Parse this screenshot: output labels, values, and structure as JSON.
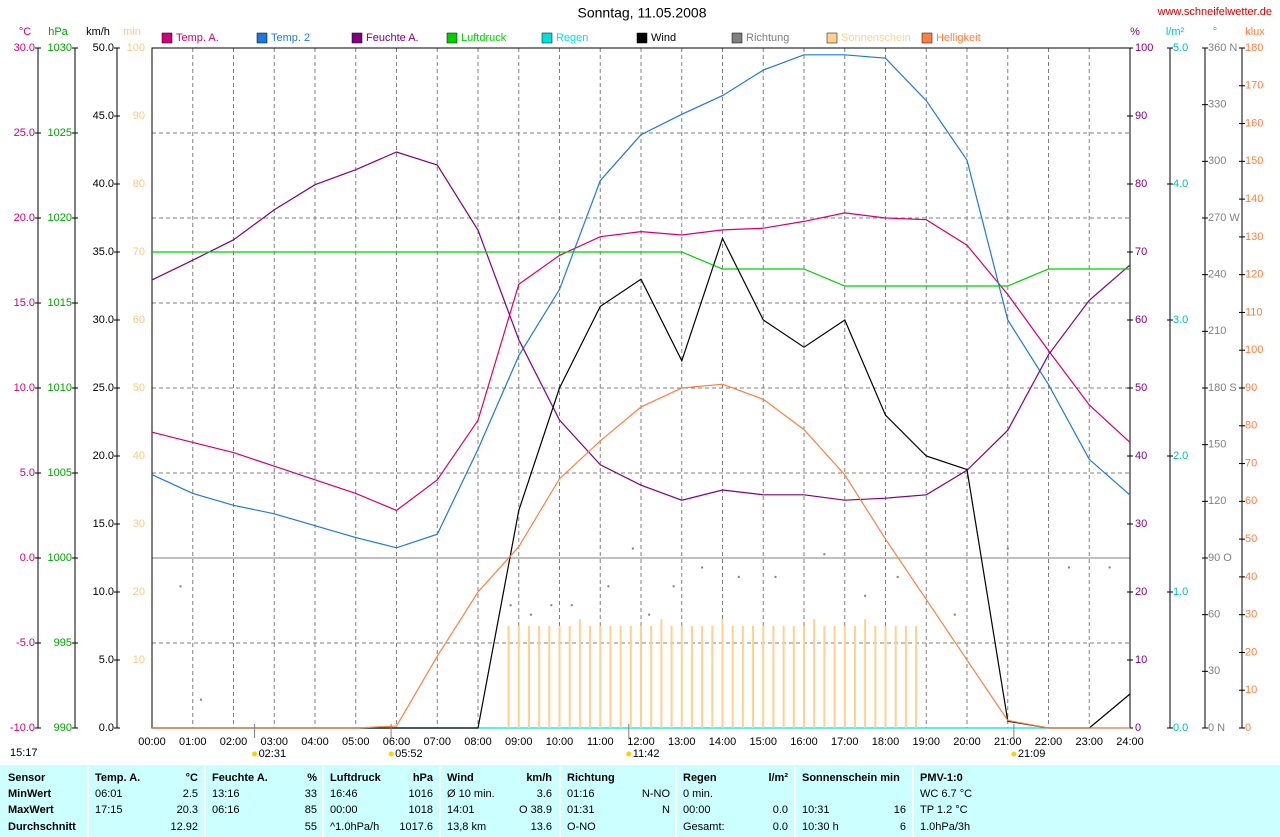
{
  "chart_data": {
    "type": "line",
    "title": "Sonntag, 11.05.2008",
    "source": "www.schneifelwetter.de",
    "time": "15:17",
    "xlim": [
      0,
      24
    ],
    "xticks": [
      {
        "value": 0,
        "label": "00:00"
      },
      {
        "value": 1,
        "label": "01:00"
      },
      {
        "value": 2,
        "label": "02:00"
      },
      {
        "value": 3,
        "label": "03:00"
      },
      {
        "value": 4,
        "label": "04:00"
      },
      {
        "value": 5,
        "label": "05:00"
      },
      {
        "value": 6,
        "label": "06:00"
      },
      {
        "value": 7,
        "label": "07:00"
      },
      {
        "value": 8,
        "label": "08:00"
      },
      {
        "value": 9,
        "label": "09:00"
      },
      {
        "value": 10,
        "label": "10:00"
      },
      {
        "value": 11,
        "label": "11:00"
      },
      {
        "value": 12,
        "label": "12:00"
      },
      {
        "value": 13,
        "label": "13:00"
      },
      {
        "value": 14,
        "label": "14:00"
      },
      {
        "value": 15,
        "label": "15:00"
      },
      {
        "value": 16,
        "label": "16:00"
      },
      {
        "value": 17,
        "label": "17:00"
      },
      {
        "value": 18,
        "label": "18:00"
      },
      {
        "value": 19,
        "label": "19:00"
      },
      {
        "value": 20,
        "label": "20:00"
      },
      {
        "value": 21,
        "label": "21:00"
      },
      {
        "value": 22,
        "label": "22:00"
      },
      {
        "value": 23,
        "label": "23:00"
      },
      {
        "value": 24,
        "label": "24:00"
      }
    ],
    "markers": [
      {
        "value": 2.517,
        "label": "02:31"
      },
      {
        "value": 5.867,
        "label": "05:52"
      },
      {
        "value": 11.7,
        "label": "11:42"
      },
      {
        "value": 21.15,
        "label": "21:09"
      }
    ],
    "axes": [
      {
        "unit": "°C",
        "color": "#d0007a",
        "ylim": [
          -10,
          30
        ],
        "yticks": [
          {
            "value": -10,
            "label": "-10.0"
          },
          {
            "value": -5,
            "label": "-5.0"
          },
          {
            "value": 0,
            "label": "0.0"
          },
          {
            "value": 5,
            "label": "5.0"
          },
          {
            "value": 10,
            "label": "10.0"
          },
          {
            "value": 15,
            "label": "15.0"
          },
          {
            "value": 20,
            "label": "20.0"
          },
          {
            "value": 25,
            "label": "25.0"
          },
          {
            "value": 30,
            "label": "30.0"
          }
        ]
      },
      {
        "unit": "hPa",
        "color": "#00a000",
        "ylim": [
          990,
          1030
        ],
        "yticks": [
          990,
          995,
          1000,
          1005,
          1010,
          1015,
          1020,
          1025,
          1030
        ]
      },
      {
        "unit": "km/h",
        "color": "#000000",
        "ylim": [
          0,
          50
        ],
        "yticks": [
          {
            "value": 0,
            "label": "0.0"
          },
          {
            "value": 5,
            "label": "5.0"
          },
          {
            "value": 10,
            "label": "10.0"
          },
          {
            "value": 15,
            "label": "15.0"
          },
          {
            "value": 20,
            "label": "20.0"
          },
          {
            "value": 25,
            "label": "25.0"
          },
          {
            "value": 30,
            "label": "30.0"
          },
          {
            "value": 35,
            "label": "35.0"
          },
          {
            "value": 40,
            "label": "40.0"
          },
          {
            "value": 45,
            "label": "45.0"
          },
          {
            "value": 50,
            "label": "50.0"
          }
        ]
      },
      {
        "unit": "min",
        "color": "#ffc880",
        "ylim": [
          0,
          100
        ],
        "yticks": [
          10,
          20,
          30,
          40,
          50,
          60,
          70,
          80,
          90,
          100
        ]
      },
      {
        "unit": "%",
        "color": "#800080",
        "ylim": [
          0,
          100
        ],
        "yticks": [
          0,
          10,
          20,
          30,
          40,
          50,
          60,
          70,
          80,
          90,
          100
        ]
      },
      {
        "unit": "l/m²",
        "color": "#00c0c0",
        "ylim": [
          0,
          5
        ],
        "yticks": [
          {
            "value": 0,
            "label": "0.0"
          },
          {
            "value": 1,
            "label": "1.0"
          },
          {
            "value": 2,
            "label": "2.0"
          },
          {
            "value": 3,
            "label": "3.0"
          },
          {
            "value": 4,
            "label": "4.0"
          },
          {
            "value": 5,
            "label": "5.0"
          }
        ]
      },
      {
        "unit": "°",
        "color": "#808080",
        "ylim": [
          0,
          360
        ],
        "yticks": [
          {
            "value": 0,
            "label": "0 N"
          },
          30,
          60,
          {
            "value": 90,
            "label": "90 O"
          },
          120,
          150,
          {
            "value": 180,
            "label": "180 S"
          },
          210,
          240,
          {
            "value": 270,
            "label": "270 W"
          },
          300,
          330,
          {
            "value": 360,
            "label": "360 N"
          }
        ]
      },
      {
        "unit": "klux",
        "color": "#ff8040",
        "ylim": [
          0,
          180
        ],
        "yticks": [
          0,
          10,
          20,
          30,
          40,
          50,
          60,
          70,
          80,
          90,
          100,
          110,
          120,
          130,
          140,
          150,
          160,
          170,
          180
        ]
      }
    ],
    "x": [
      0,
      1,
      2,
      3,
      4,
      5,
      6,
      7,
      8,
      9,
      10,
      11,
      12,
      13,
      14,
      15,
      16,
      17,
      18,
      19,
      20,
      21,
      22,
      23,
      24
    ],
    "series": [
      {
        "name": "Temp. A.",
        "color": "#d0007a",
        "axis": "°C",
        "kind": "line",
        "values": [
          7.4,
          6.8,
          6.2,
          5.4,
          4.6,
          3.8,
          2.8,
          4.6,
          8.1,
          16.1,
          17.8,
          18.9,
          19.2,
          19.0,
          19.3,
          19.4,
          19.8,
          20.3,
          20.0,
          19.9,
          18.4,
          15.5,
          12.2,
          9.0,
          6.8
        ]
      },
      {
        "name": "Temp. 2",
        "color": "#1e78d8",
        "axis": "°C",
        "kind": "line",
        "values": [
          4.9,
          3.8,
          3.1,
          2.6,
          1.9,
          1.2,
          0.6,
          1.4,
          6.4,
          11.9,
          15.8,
          22.2,
          24.9,
          26.1,
          27.2,
          28.7,
          29.6,
          29.6,
          29.4,
          26.9,
          23.4,
          14.0,
          10.2,
          5.8,
          3.7
        ]
      },
      {
        "name": "Feuchte A.",
        "color": "#800080",
        "axis": "%",
        "kind": "line",
        "values": [
          65.9,
          68.8,
          71.8,
          76.2,
          79.9,
          82.1,
          84.7,
          82.8,
          73.2,
          57.1,
          45.3,
          38.7,
          35.7,
          33.5,
          35.0,
          34.3,
          34.3,
          33.5,
          33.8,
          34.3,
          37.9,
          43.8,
          54.9,
          62.9,
          68.1
        ]
      },
      {
        "name": "Luftdruck",
        "color": "#00d000",
        "axis": "hPa",
        "kind": "line",
        "values": [
          1018,
          1018,
          1018,
          1018,
          1018,
          1018,
          1018,
          1018,
          1018,
          1018,
          1018,
          1018,
          1018,
          1018,
          1017,
          1017,
          1017,
          1016,
          1016,
          1016,
          1016,
          1016,
          1017,
          1017,
          1017
        ]
      },
      {
        "name": "Regen",
        "color": "#00e0e0",
        "axis": "l/m²",
        "kind": "line",
        "values": [
          0,
          0,
          0,
          0,
          0,
          0,
          0,
          0,
          0,
          0,
          0,
          0,
          0,
          0,
          0,
          0,
          0,
          0,
          0,
          0,
          0,
          0,
          0,
          0,
          0
        ]
      },
      {
        "name": "Wind",
        "color": "#000000",
        "axis": "km/h",
        "kind": "line",
        "values": [
          0,
          0,
          0,
          0,
          0,
          0,
          0,
          0,
          0,
          16,
          25,
          31,
          33,
          27,
          36,
          30,
          28,
          30,
          23,
          20,
          19,
          0.5,
          0,
          0,
          2.5
        ]
      },
      {
        "name": "Richtung",
        "color": "#808080",
        "axis": "°",
        "kind": "dot",
        "x": [
          0.7,
          1.2,
          8.8,
          9.3,
          9.8,
          10.3,
          11.2,
          11.8,
          12.2,
          12.8,
          13.5,
          14.4,
          15.3,
          16.5,
          17.5,
          18.3,
          19.7,
          21.0,
          22.5,
          23.5
        ],
        "values": [
          75,
          15,
          65,
          60,
          65,
          65,
          75,
          95,
          60,
          75,
          85,
          80,
          80,
          92,
          70,
          80,
          60,
          95,
          85,
          85
        ]
      },
      {
        "name": "Sonnenschein",
        "color": "#ffd090",
        "axis": "min",
        "kind": "bar",
        "x": [
          8.75,
          9,
          9.25,
          9.5,
          9.75,
          10,
          10.25,
          10.5,
          10.75,
          11,
          11.25,
          11.5,
          11.75,
          12,
          12.25,
          12.5,
          12.75,
          13,
          13.25,
          13.5,
          13.75,
          14,
          14.25,
          14.5,
          14.75,
          15,
          15.25,
          15.5,
          15.75,
          16,
          16.25,
          16.5,
          16.75,
          17,
          17.25,
          17.5,
          17.75,
          18,
          18.25,
          18.5,
          18.75
        ],
        "values": [
          15,
          15,
          15,
          15,
          15,
          15,
          15,
          16,
          15,
          15,
          15,
          15,
          15,
          15,
          15,
          16,
          15,
          15,
          15,
          15,
          15,
          16,
          15,
          15,
          15,
          15,
          15,
          15,
          15,
          15,
          16,
          15,
          15,
          15,
          15,
          16,
          15,
          15,
          15,
          15,
          15
        ]
      },
      {
        "name": "Helligkeit",
        "color": "#ff8040",
        "axis": "klux",
        "kind": "line",
        "values": [
          0,
          0,
          0,
          0,
          0,
          0,
          0.5,
          19,
          36,
          48,
          66,
          76,
          85,
          90,
          91,
          87,
          79,
          67,
          50,
          34,
          18,
          2,
          0,
          0,
          0
        ]
      }
    ]
  },
  "table": {
    "header": [
      [
        "Sensor"
      ],
      [
        "Temp. A.",
        "°C"
      ],
      [
        "Feuchte A.",
        "%"
      ],
      [
        "Luftdruck",
        "hPa"
      ],
      [
        "Wind",
        "km/h"
      ],
      [
        "Richtung"
      ],
      [
        "Regen",
        "l/m²"
      ],
      [
        "Sonnenschein min"
      ],
      [
        "PMV-1:0"
      ]
    ],
    "rows": [
      [
        [
          "MinWert"
        ],
        [
          "06:01",
          "2.5"
        ],
        [
          "13:16",
          "33"
        ],
        [
          "16:46",
          "1016"
        ],
        [
          "Ø 10 min.",
          "3.6"
        ],
        [
          "01:16",
          "N-NO"
        ],
        [
          "0 min."
        ],
        [],
        [
          "WC 6.7 °C"
        ]
      ],
      [
        [
          "MaxWert"
        ],
        [
          "17:15",
          "20.3"
        ],
        [
          "06:16",
          "85"
        ],
        [
          "00:00",
          "1018"
        ],
        [
          "14:01",
          "O 38.9"
        ],
        [
          "01:31",
          "N"
        ],
        [
          "00:00",
          "0.0"
        ],
        [
          "10:31",
          "16"
        ],
        [
          "TP 1.2 °C"
        ]
      ],
      [
        [
          "Durchschnitt"
        ],
        [
          "12.92"
        ],
        [
          "55"
        ],
        [
          "^1.0hPa/h",
          "1017.6"
        ],
        [
          "13,8 km",
          "13.6"
        ],
        [
          "O-NO"
        ],
        [
          "Gesamt:",
          "0.0"
        ],
        [
          "10:30 h",
          "6"
        ],
        [
          "1.0hPa/3h"
        ]
      ]
    ]
  }
}
